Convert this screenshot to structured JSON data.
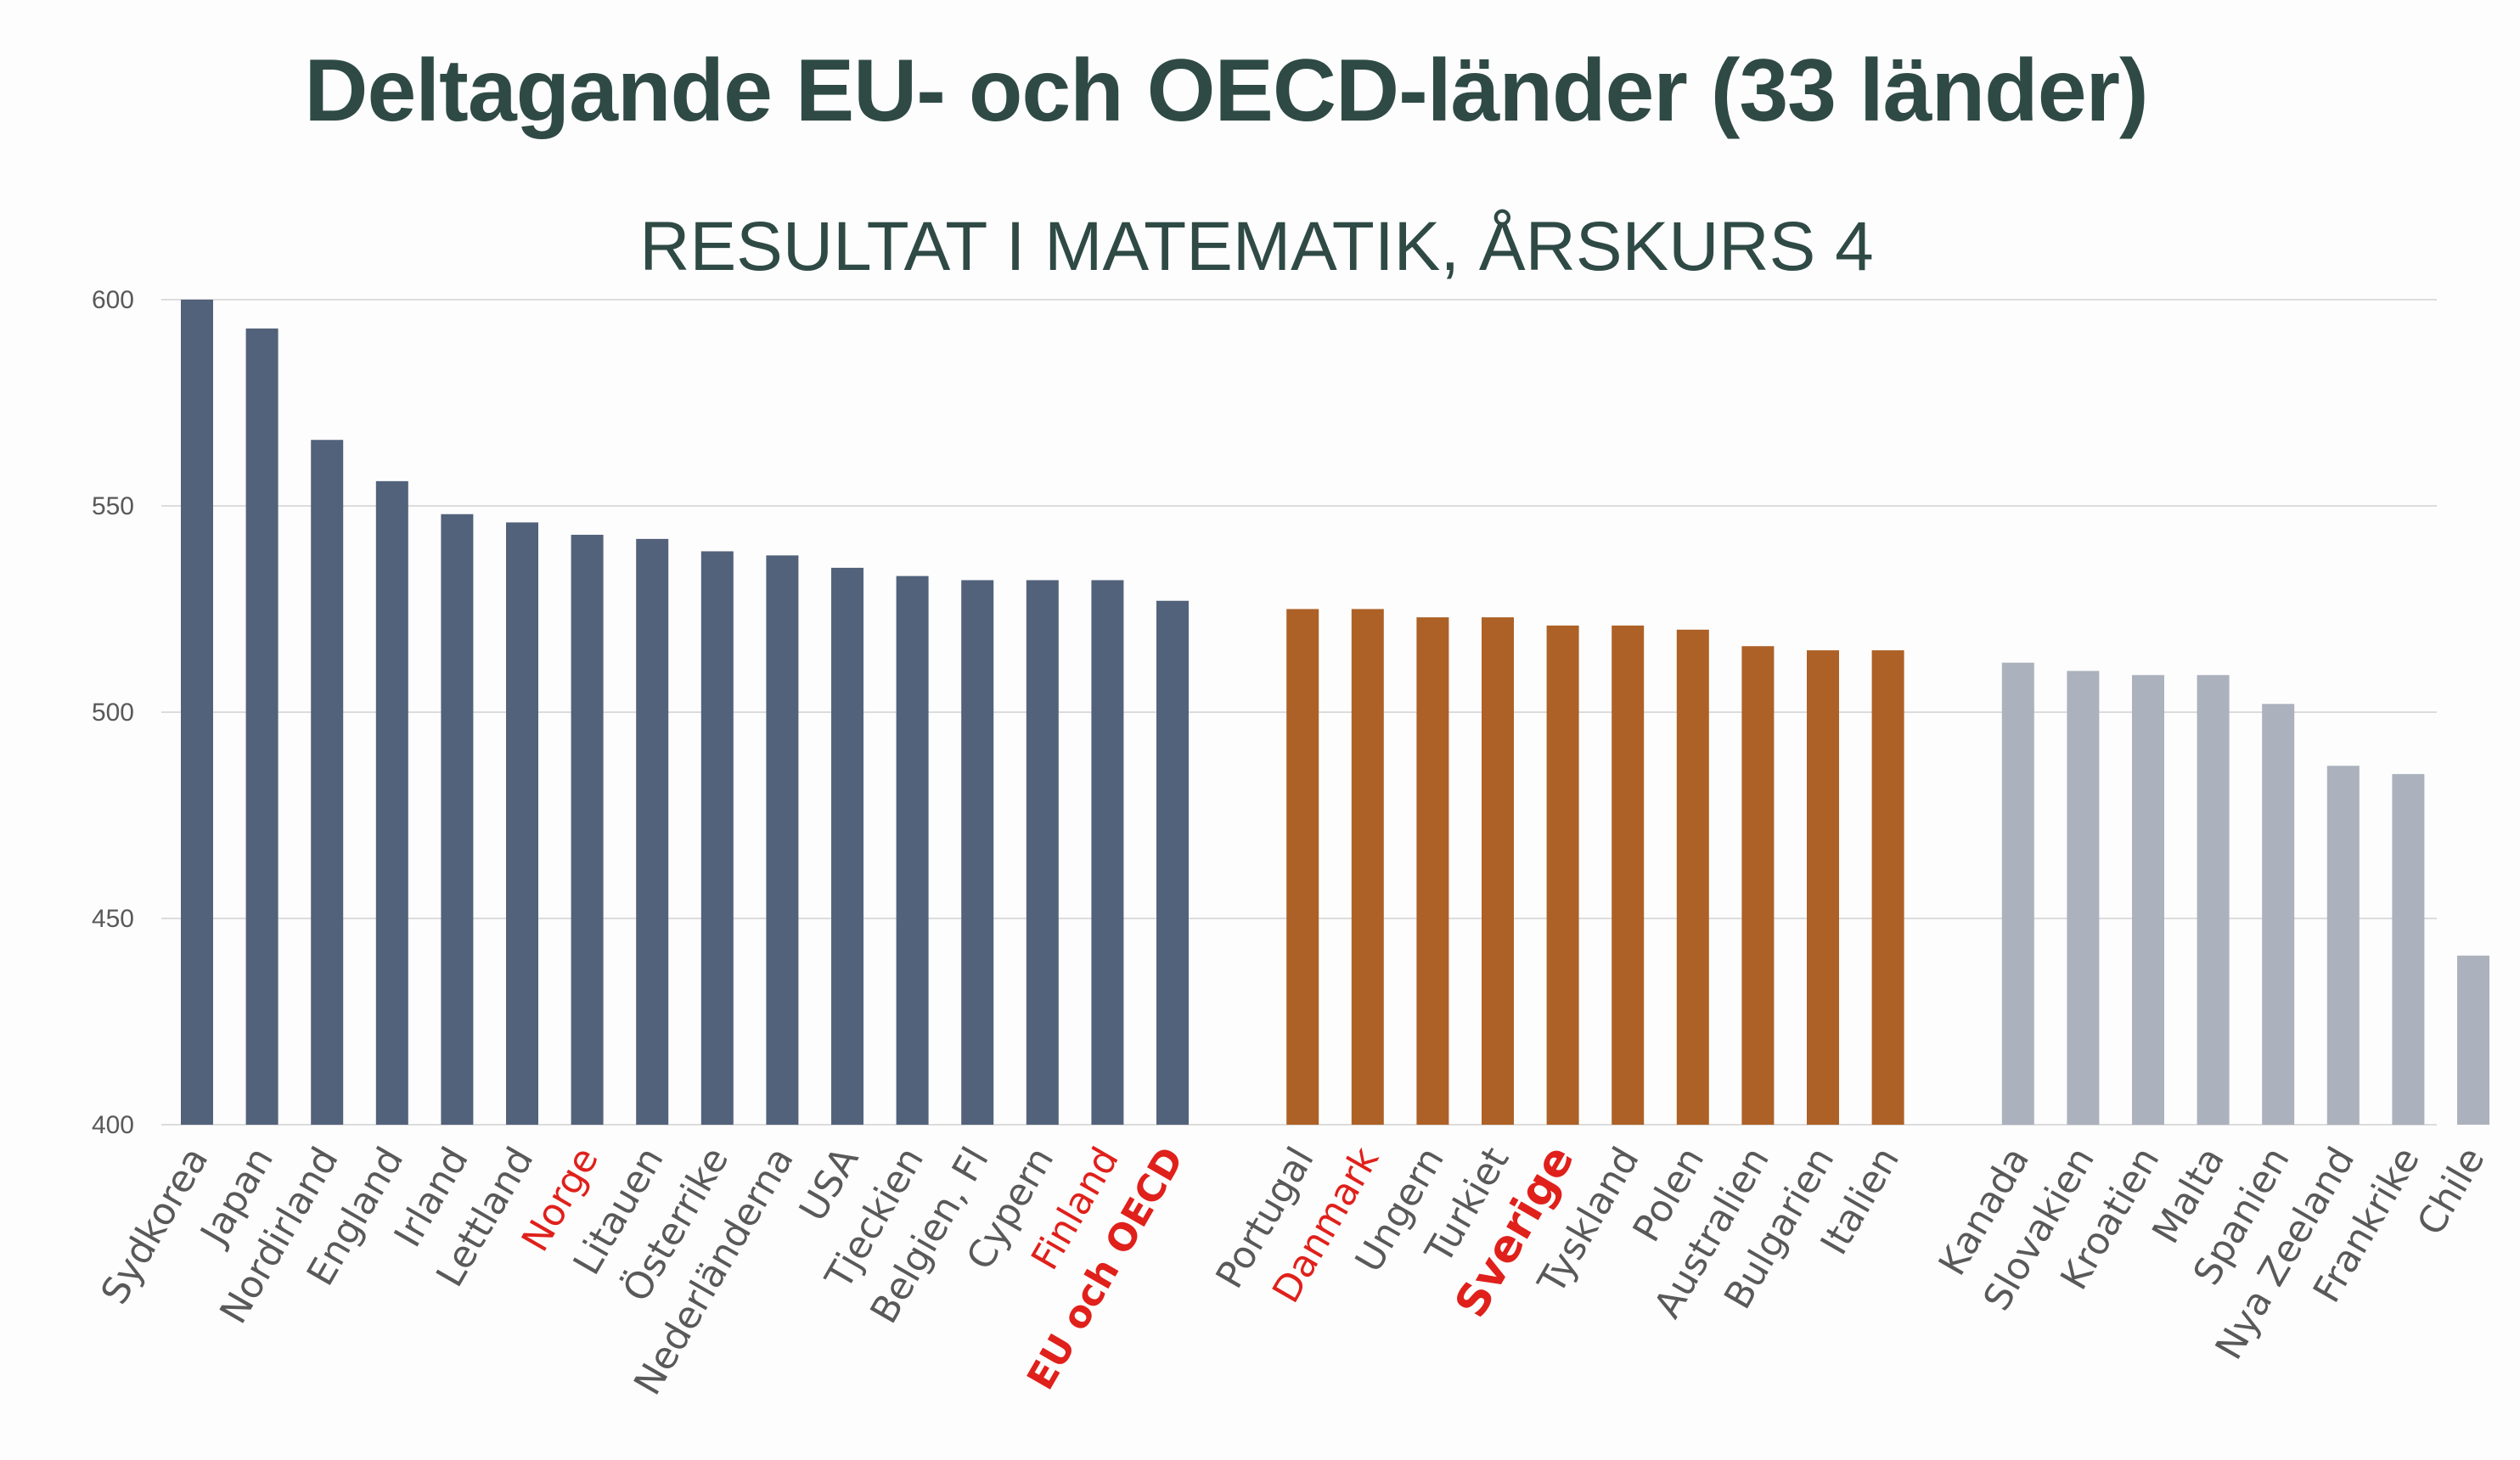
{
  "title": "Deltagande EU- och OECD-länder (33 länder)",
  "chart_data": {
    "type": "bar",
    "title": "RESULTAT I MATEMATIK, ÅRSKURS 4",
    "xlabel": "",
    "ylabel": "",
    "ylim": [
      400,
      600
    ],
    "yticks": [
      400,
      450,
      500,
      550,
      600
    ],
    "grid": true,
    "colors": {
      "above": "#53627b",
      "similar": "#ad6127",
      "below": "#abb2bd",
      "label": "#595959",
      "highlight": "#e0201b"
    },
    "categories": [
      "Sydkorea",
      "Japan",
      "Nordirland",
      "England",
      "Irland",
      "Lettland",
      "Norge",
      "Litauen",
      "Österrike",
      "Nederländerna",
      "USA",
      "Tjeckien",
      "Belgien, Fl",
      "Cypern",
      "Finland",
      "EU och OECD",
      "Portugal",
      "Danmark",
      "Ungern",
      "Turkiet",
      "Sverige",
      "Tyskland",
      "Polen",
      "Australien",
      "Bulgarien",
      "Italien",
      "Kanada",
      "Slovakien",
      "Kroatien",
      "Malta",
      "Spanien",
      "Nya Zeeland",
      "Frankrike",
      "Chile"
    ],
    "values": [
      600,
      593,
      566,
      556,
      548,
      546,
      543,
      542,
      539,
      538,
      535,
      533,
      532,
      532,
      532,
      527,
      525,
      525,
      523,
      523,
      521,
      521,
      520,
      516,
      515,
      515,
      512,
      510,
      509,
      509,
      502,
      487,
      485,
      441
    ],
    "groups": [
      "above",
      "above",
      "above",
      "above",
      "above",
      "above",
      "above",
      "above",
      "above",
      "above",
      "above",
      "above",
      "above",
      "above",
      "above",
      "above",
      "similar",
      "similar",
      "similar",
      "similar",
      "similar",
      "similar",
      "similar",
      "similar",
      "similar",
      "similar",
      "below",
      "below",
      "below",
      "below",
      "below",
      "below",
      "below",
      "below"
    ],
    "highlighted": [
      "Norge",
      "Finland",
      "EU och OECD",
      "Danmark",
      "Sverige"
    ],
    "bold": [
      "EU och OECD",
      "Sverige"
    ]
  }
}
